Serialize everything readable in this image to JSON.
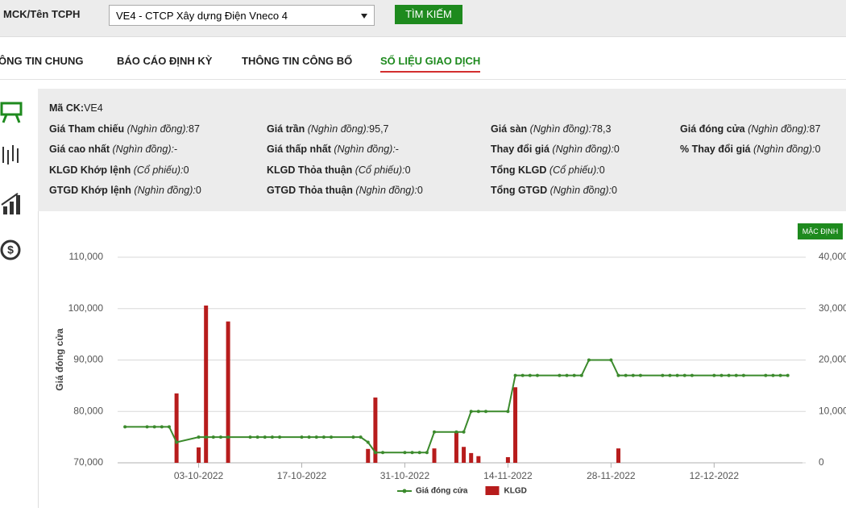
{
  "search": {
    "label": "MCK/Tên TCPH",
    "selected": "VE4 - CTCP Xây dựng Điện Vneco 4",
    "button": "TÌM KIẾM"
  },
  "tabs": [
    "ÔNG TIN CHUNG",
    "BÁO CÁO ĐỊNH KỲ",
    "THÔNG TIN CÔNG BỐ",
    "SỐ LIỆU GIAO DỊCH"
  ],
  "info": {
    "rows": [
      [
        {
          "label": "Mã CK:",
          "value": "VE4"
        }
      ],
      [
        {
          "label": "Giá Tham chiếu",
          "unit": "(Nghìn đồng):",
          "value": "87"
        },
        {
          "label": "Giá trần",
          "unit": "(Nghìn đồng):",
          "value": "95,7"
        },
        {
          "label": "Giá sàn",
          "unit": "(Nghìn đồng):",
          "value": "78,3"
        },
        {
          "label": "Giá đóng cửa",
          "unit": "(Nghìn đồng):",
          "value": "87"
        }
      ],
      [
        {
          "label": "Giá cao nhất",
          "unit": "(Nghìn đồng):",
          "value": "-"
        },
        {
          "label": "Giá thấp nhất",
          "unit": "(Nghìn đồng):",
          "value": "-"
        },
        {
          "label": "Thay đổi giá",
          "unit": "(Nghìn đồng):",
          "value": "0"
        },
        {
          "label": "% Thay đổi giá",
          "unit": "(Nghìn đồng):",
          "value": "0"
        }
      ],
      [
        {
          "label": "KLGD Khớp lệnh",
          "unit": "(Cổ phiếu):",
          "value": "0"
        },
        {
          "label": "KLGD Thỏa thuận",
          "unit": "(Cổ phiếu):",
          "value": "0"
        },
        {
          "label": "Tổng KLGD",
          "unit": "(Cổ phiếu):",
          "value": "0"
        }
      ],
      [
        {
          "label": "GTGD Khớp lệnh",
          "unit": "(Nghìn đồng):",
          "value": "0"
        },
        {
          "label": "GTGD Thỏa thuận",
          "unit": "(Nghìn đồng):",
          "value": "0"
        },
        {
          "label": "Tổng GTGD",
          "unit": "(Nghìn đồng):",
          "value": "0"
        }
      ]
    ]
  },
  "chart_button": "MẶC ĐỊNH",
  "chart_data": {
    "type": "line-bar",
    "ylabel": "Giá đóng cửa",
    "xlim": [
      "22-09-2022",
      "24-12-2022"
    ],
    "xticks": [
      "03-10-2022",
      "17-10-2022",
      "31-10-2022",
      "14-11-2022",
      "28-11-2022",
      "12-12-2022"
    ],
    "ylim": [
      70000,
      110000
    ],
    "yticks": [
      {
        "value": 70000,
        "label": "70,000"
      },
      {
        "value": 80000,
        "label": "80,000"
      },
      {
        "value": 90000,
        "label": "90,000"
      },
      {
        "value": 100000,
        "label": "100,000"
      },
      {
        "value": 110000,
        "label": "110,000"
      }
    ],
    "y2lim": [
      0,
      40000
    ],
    "y2ticks": [
      0,
      {
        "value": 10000,
        "label": "10,000"
      },
      {
        "value": 20000,
        "label": "20,000"
      },
      {
        "value": 30000,
        "label": "30,000"
      },
      {
        "value": 40000,
        "label": "40,000"
      }
    ],
    "grid": true,
    "series": [
      {
        "name": "Giá đóng cửa",
        "type": "line",
        "color": "#3b8a2c",
        "x": [
          "23-09-2022",
          "26-09-2022",
          "27-09-2022",
          "28-09-2022",
          "29-09-2022",
          "30-09-2022",
          "03-10-2022",
          "04-10-2022",
          "05-10-2022",
          "06-10-2022",
          "07-10-2022",
          "10-10-2022",
          "11-10-2022",
          "12-10-2022",
          "13-10-2022",
          "14-10-2022",
          "17-10-2022",
          "18-10-2022",
          "19-10-2022",
          "20-10-2022",
          "21-10-2022",
          "24-10-2022",
          "25-10-2022",
          "26-10-2022",
          "27-10-2022",
          "28-10-2022",
          "31-10-2022",
          "01-11-2022",
          "02-11-2022",
          "03-11-2022",
          "04-11-2022",
          "07-11-2022",
          "08-11-2022",
          "09-11-2022",
          "10-11-2022",
          "11-11-2022",
          "14-11-2022",
          "15-11-2022",
          "16-11-2022",
          "17-11-2022",
          "18-11-2022",
          "21-11-2022",
          "22-11-2022",
          "23-11-2022",
          "24-11-2022",
          "25-11-2022",
          "28-11-2022",
          "29-11-2022",
          "30-11-2022",
          "01-12-2022",
          "02-12-2022",
          "05-12-2022",
          "06-12-2022",
          "07-12-2022",
          "08-12-2022",
          "09-12-2022",
          "12-12-2022",
          "13-12-2022",
          "14-12-2022",
          "15-12-2022",
          "16-12-2022",
          "19-12-2022",
          "20-12-2022",
          "21-12-2022",
          "22-12-2022"
        ],
        "values": [
          77000,
          77000,
          77000,
          77000,
          77000,
          74000,
          75000,
          75000,
          75000,
          75000,
          75000,
          75000,
          75000,
          75000,
          75000,
          75000,
          75000,
          75000,
          75000,
          75000,
          75000,
          75000,
          75000,
          74000,
          72000,
          72000,
          72000,
          72000,
          72000,
          72000,
          76000,
          76000,
          76000,
          80000,
          80000,
          80000,
          80000,
          87000,
          87000,
          87000,
          87000,
          87000,
          87000,
          87000,
          87000,
          90000,
          90000,
          87000,
          87000,
          87000,
          87000,
          87000,
          87000,
          87000,
          87000,
          87000,
          87000,
          87000,
          87000,
          87000,
          87000,
          87000,
          87000,
          87000,
          87000
        ]
      },
      {
        "name": "KLGD",
        "type": "bar",
        "axis": "y2",
        "color": "#b71c1c",
        "x": [
          "30-09-2022",
          "03-10-2022",
          "04-10-2022",
          "07-10-2022",
          "26-10-2022",
          "27-10-2022",
          "04-11-2022",
          "07-11-2022",
          "08-11-2022",
          "09-11-2022",
          "10-11-2022",
          "14-11-2022",
          "15-11-2022",
          "29-11-2022"
        ],
        "values": [
          13500,
          3000,
          30600,
          27500,
          2700,
          12700,
          2800,
          5900,
          3100,
          1900,
          1300,
          1100,
          14700,
          2800
        ]
      }
    ]
  }
}
